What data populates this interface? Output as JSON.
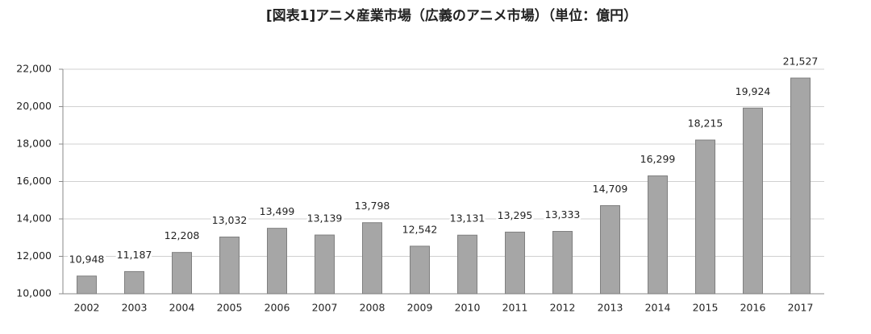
{
  "chart_data": {
    "type": "bar",
    "title": "[図表1]アニメ産業市場（広義のアニメ市場）（単位：億円）",
    "categories": [
      "2002",
      "2003",
      "2004",
      "2005",
      "2006",
      "2007",
      "2008",
      "2009",
      "2010",
      "2011",
      "2012",
      "2013",
      "2014",
      "2015",
      "2016",
      "2017"
    ],
    "values": [
      10948,
      11187,
      12208,
      13032,
      13499,
      13139,
      13798,
      12542,
      13131,
      13295,
      13333,
      14709,
      16299,
      18215,
      19924,
      21527
    ],
    "value_labels": [
      "10,948",
      "11,187",
      "12,208",
      "13,032",
      "13,499",
      "13,139",
      "13,798",
      "12,542",
      "13,131",
      "13,295",
      "13,333",
      "14,709",
      "16,299",
      "18,215",
      "19,924",
      "21,527"
    ],
    "color": "#a6a6a6",
    "ylim": [
      10000,
      22000
    ],
    "yticks": [
      {
        "value": 10000,
        "label": "10,000"
      },
      {
        "value": 12000,
        "label": "12,000"
      },
      {
        "value": 14000,
        "label": "14,000"
      },
      {
        "value": 16000,
        "label": "16,000"
      },
      {
        "value": 18000,
        "label": "18,000"
      },
      {
        "value": 20000,
        "label": "20,000"
      },
      {
        "value": 22000,
        "label": "22,000"
      }
    ],
    "grid": true
  }
}
